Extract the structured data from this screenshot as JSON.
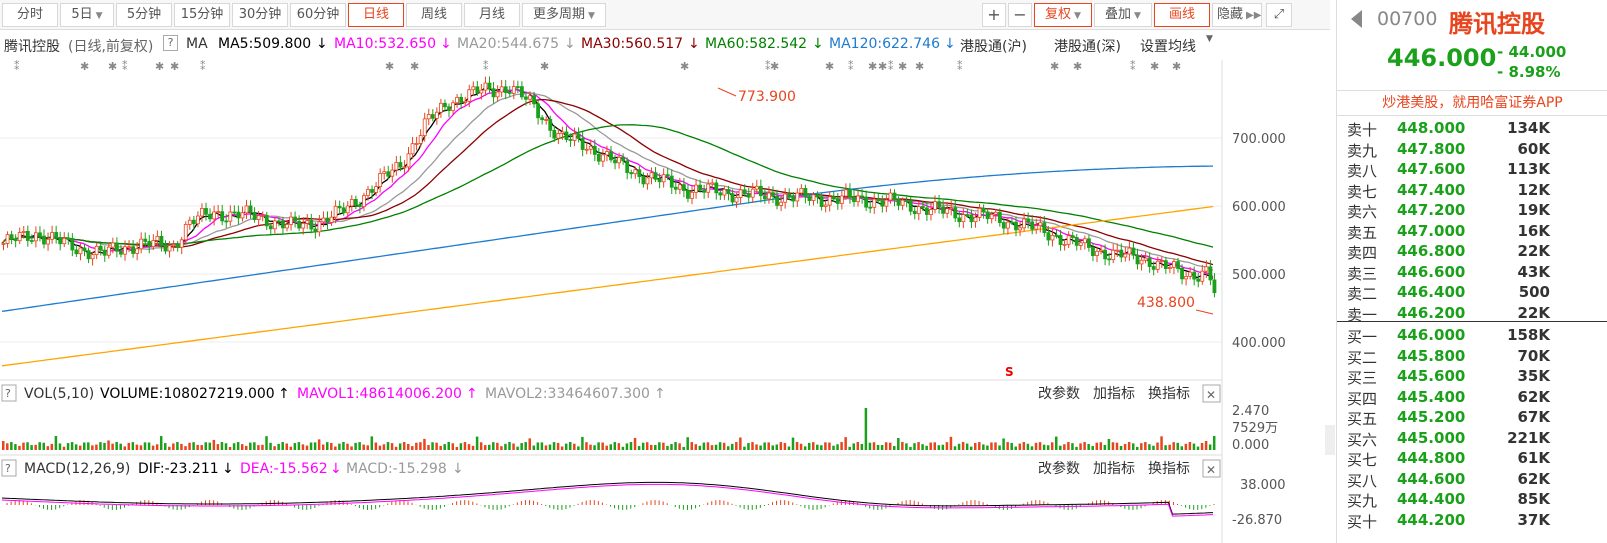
{
  "toolbar": {
    "tabs": [
      {
        "label": "分时",
        "dd": false,
        "active": false
      },
      {
        "label": "5日",
        "dd": true,
        "active": false
      },
      {
        "label": "5分钟",
        "dd": false,
        "active": false
      },
      {
        "label": "15分钟",
        "dd": false,
        "active": false
      },
      {
        "label": "30分钟",
        "dd": false,
        "active": false
      },
      {
        "label": "60分钟",
        "dd": false,
        "active": false
      },
      {
        "label": "日线",
        "dd": false,
        "active": true
      },
      {
        "label": "周线",
        "dd": false,
        "active": false
      },
      {
        "label": "月线",
        "dd": false,
        "active": false
      },
      {
        "label": "更多周期",
        "dd": true,
        "active": false
      }
    ],
    "zoom_in": "+",
    "zoom_out": "−",
    "restore_label": "复权",
    "overlay_label": "叠加",
    "draw_label": "画线",
    "hide_label": "隐藏"
  },
  "ma_line": {
    "stock": "腾讯控股",
    "desc": "(日线,前复权)",
    "help": "?",
    "ma_label": "MA",
    "ma5": "MA5:509.800",
    "ma10": "MA10:532.650",
    "ma20": "MA20:544.675",
    "ma30": "MA30:560.517",
    "ma60": "MA60:582.542",
    "ma120": "MA120:622.746",
    "hk_sh": "港股通(沪)",
    "hk_sz": "港股通(深)",
    "set_ma": "设置均线"
  },
  "chart_data": {
    "type": "line",
    "price_axis": [
      "700.000",
      "600.000",
      "500.000",
      "400.000"
    ],
    "high_label": "773.900",
    "low_label": "438.800",
    "vol_label_help": "?",
    "vol_title": "VOL(5,10)",
    "vol_value": "VOLUME:108027219.000",
    "mavol1": "MAVOL1:48614006.200",
    "mavol2": "MAVOL2:33464607.300",
    "vol_axis": [
      "2.470",
      "7529万",
      "0.000"
    ],
    "macd_help": "?",
    "macd_title": "MACD(12,26,9)",
    "dif": "DIF:-23.211",
    "dea": "DEA:-15.562",
    "macd": "MACD:-15.298",
    "macd_axis": [
      "38.000",
      "-26.870"
    ],
    "panel_btns": [
      "改参数",
      "加指标",
      "换指标"
    ],
    "close_x": "✕",
    "colors": {
      "ma5": "#000000",
      "ma10": "#ff00ff",
      "ma20": "#999999",
      "ma30": "#8b0000",
      "ma60": "#008000",
      "ma120": "#1e7bd0",
      "ma250": "#ffa500",
      "up": "#e8451e",
      "down": "#1aa01a"
    }
  },
  "quote": {
    "code": "00700",
    "name": "腾讯控股",
    "price": "446.000",
    "change": "- 44.000",
    "change_pct": "- 8.98%",
    "promo": "炒港美股，就用哈富证券APP"
  },
  "orderbook": {
    "asks": [
      {
        "label": "卖十",
        "price": "448.000",
        "vol": "134K"
      },
      {
        "label": "卖九",
        "price": "447.800",
        "vol": "60K"
      },
      {
        "label": "卖八",
        "price": "447.600",
        "vol": "113K"
      },
      {
        "label": "卖七",
        "price": "447.400",
        "vol": "12K"
      },
      {
        "label": "卖六",
        "price": "447.200",
        "vol": "19K"
      },
      {
        "label": "卖五",
        "price": "447.000",
        "vol": "16K"
      },
      {
        "label": "卖四",
        "price": "446.800",
        "vol": "22K"
      },
      {
        "label": "卖三",
        "price": "446.600",
        "vol": "43K"
      },
      {
        "label": "卖二",
        "price": "446.400",
        "vol": "500"
      },
      {
        "label": "卖一",
        "price": "446.200",
        "vol": "22K"
      }
    ],
    "bids": [
      {
        "label": "买一",
        "price": "446.000",
        "vol": "158K"
      },
      {
        "label": "买二",
        "price": "445.800",
        "vol": "70K"
      },
      {
        "label": "买三",
        "price": "445.600",
        "vol": "35K"
      },
      {
        "label": "买四",
        "price": "445.400",
        "vol": "62K"
      },
      {
        "label": "买五",
        "price": "445.200",
        "vol": "67K"
      },
      {
        "label": "买六",
        "price": "445.000",
        "vol": "221K"
      },
      {
        "label": "买七",
        "price": "444.800",
        "vol": "61K"
      },
      {
        "label": "买八",
        "price": "444.600",
        "vol": "62K"
      },
      {
        "label": "买九",
        "price": "444.400",
        "vol": "85K"
      },
      {
        "label": "买十",
        "price": "444.200",
        "vol": "37K"
      }
    ]
  }
}
